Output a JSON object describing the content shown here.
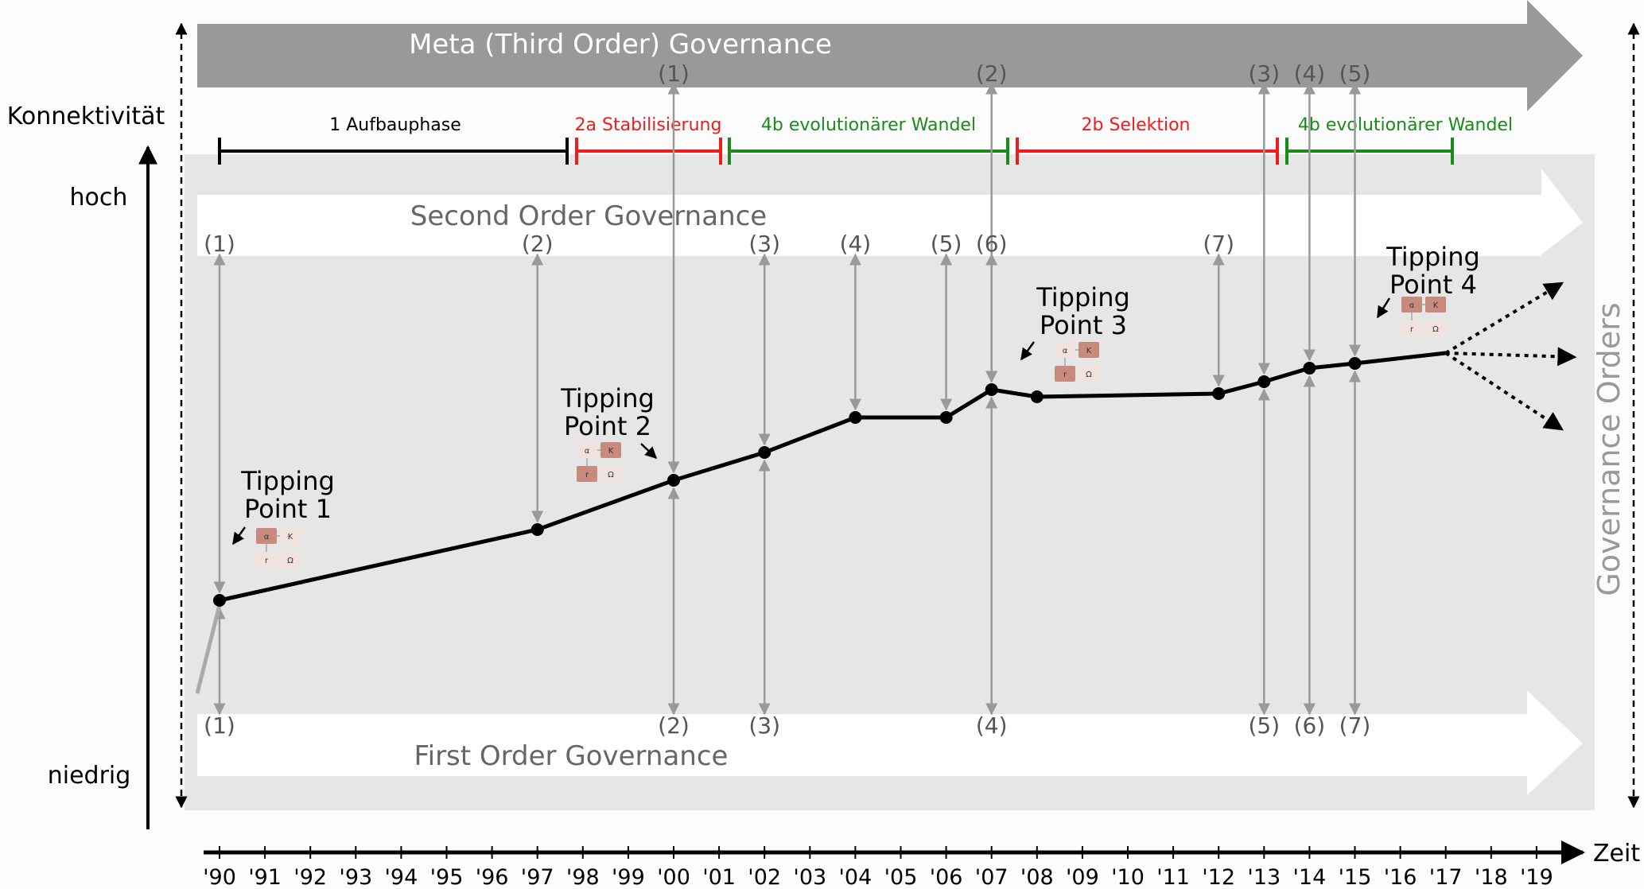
{
  "axes": {
    "y_title": "Konnektivität",
    "y_high": "hoch",
    "y_low": "niedrig",
    "x_title": "Zeit",
    "right_title": "Governance Orders"
  },
  "bands": {
    "meta": "Meta (Third Order) Governance",
    "second": "Second Order Governance",
    "first": "First Order Governance"
  },
  "phases": [
    {
      "label": "1 Aufbauphase",
      "color": "#000000"
    },
    {
      "label": "2a Stabilisierung",
      "color": "#ee1c1c"
    },
    {
      "label": "4b evolutionärer Wandel",
      "color": "#1a8a1a"
    },
    {
      "label": "2b Selektion",
      "color": "#ee1c1c"
    },
    {
      "label": "4b evolutionärer Wandel",
      "color": "#1a8a1a"
    }
  ],
  "tipping_points": [
    {
      "line1": "Tipping",
      "line2": "Point 1"
    },
    {
      "line1": "Tipping",
      "line2": "Point 2"
    },
    {
      "line1": "Tipping",
      "line2": "Point 3"
    },
    {
      "line1": "Tipping",
      "line2": "Point 4"
    }
  ],
  "mini_matrix": {
    "a": "α",
    "k": "K",
    "r": "r",
    "o": "Ω"
  },
  "meta_markers": [
    "(1)",
    "(2)",
    "(3)",
    "(4)",
    "(5)"
  ],
  "second_markers": [
    "(1)",
    "(2)",
    "(3)",
    "(4)",
    "(5)",
    "(6)",
    "(7)"
  ],
  "first_markers": [
    "(1)",
    "(2)",
    "(3)",
    "(4)",
    "(5)",
    "(6)",
    "(7)"
  ],
  "years": [
    "'90",
    "'91",
    "'92",
    "'93",
    "'94",
    "'95",
    "'96",
    "'97",
    "'98",
    "'99",
    "'00",
    "'01",
    "'02",
    "'03",
    "'04",
    "'05",
    "'06",
    "'07",
    "'08",
    "'09",
    "'10",
    "'11",
    "'12",
    "'13",
    "'14",
    "'15",
    "'16",
    "'17",
    "'18",
    "'19"
  ],
  "curve": [
    {
      "year": "'90"
    },
    {
      "year": "'97"
    },
    {
      "year": "'00"
    },
    {
      "year": "'02"
    },
    {
      "year": "'04"
    },
    {
      "year": "'06"
    },
    {
      "year": "'07"
    },
    {
      "year": "'08"
    },
    {
      "year": "'12"
    },
    {
      "year": "'13"
    },
    {
      "year": "'14"
    },
    {
      "year": "'15"
    },
    {
      "year": "'17"
    }
  ],
  "colors": {
    "band_dark": "#999999",
    "band_panel": "#e6e6e6",
    "band_white": "#ffffff",
    "connector": "#999999",
    "curve": "#000000"
  }
}
